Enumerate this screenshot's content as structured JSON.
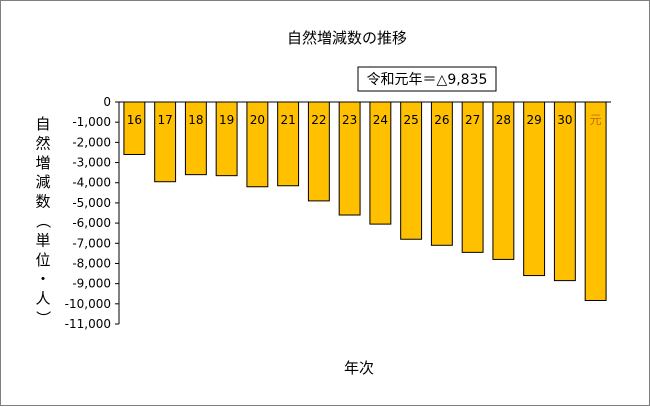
{
  "chart_data": {
    "type": "bar",
    "title": "自然増減数の推移",
    "xlabel": "年次",
    "ylabel": "自然増減数（単位・人）",
    "annotation": "令和元年＝△9,835",
    "categories": [
      "16",
      "17",
      "18",
      "19",
      "20",
      "21",
      "22",
      "23",
      "24",
      "25",
      "26",
      "27",
      "28",
      "29",
      "30",
      "元"
    ],
    "values": [
      -2600,
      -3950,
      -3600,
      -3650,
      -4200,
      -4150,
      -4900,
      -5600,
      -6050,
      -6800,
      -7100,
      -7450,
      -7800,
      -8600,
      -8850,
      -9835
    ],
    "ylim": [
      -11000,
      0
    ],
    "yticks": [
      0,
      -1000,
      -2000,
      -3000,
      -4000,
      -5000,
      -6000,
      -7000,
      -8000,
      -9000,
      -10000,
      -11000
    ],
    "ytick_labels": [
      "0",
      "-1,000",
      "-2,000",
      "-3,000",
      "-4,000",
      "-5,000",
      "-6,000",
      "-7,000",
      "-8,000",
      "-9,000",
      "-10,000",
      "-11,000"
    ],
    "grid": false,
    "legend": "none",
    "bar_color": "#FFC000",
    "bar_edge_color": "#000000",
    "last_label_color": "#C07000"
  }
}
